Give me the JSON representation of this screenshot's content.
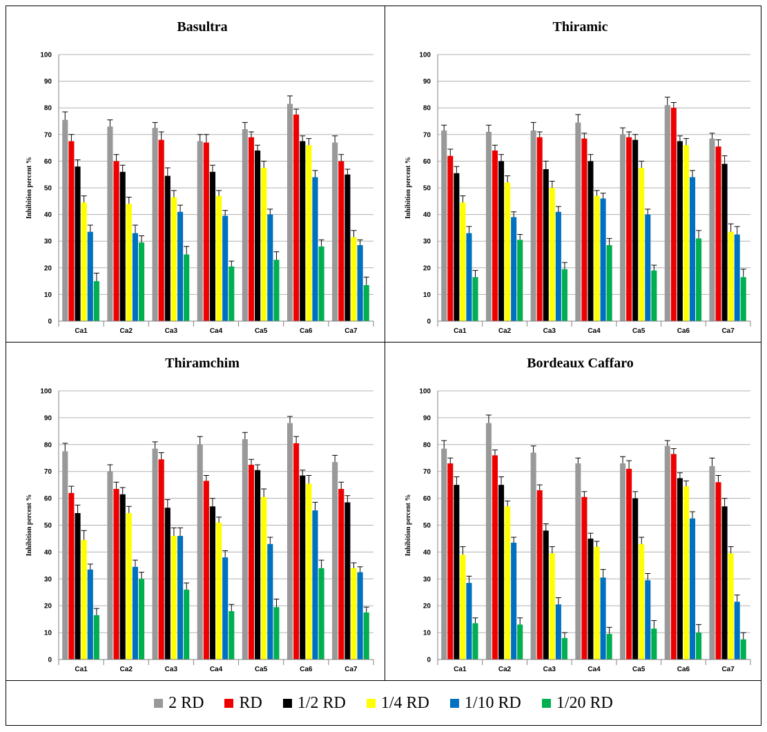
{
  "chart_data": [
    {
      "type": "bar",
      "title": "Basultra",
      "ylabel": "Inhibition percent %",
      "ylim": [
        0,
        100
      ],
      "yticks": [
        "0",
        "10",
        "20",
        "30",
        "40",
        "50",
        "60",
        "70",
        "80",
        "90",
        "100"
      ],
      "categories": [
        "Ca1",
        "Ca2",
        "Ca3",
        "Ca4",
        "Ca5",
        "Ca6",
        "Ca7"
      ],
      "series": [
        {
          "name": "2 RD",
          "values": [
            75.5,
            73,
            72.5,
            67.5,
            72,
            81.5,
            67
          ],
          "errors": [
            3,
            2.5,
            2,
            2.5,
            2.5,
            3,
            2.5
          ]
        },
        {
          "name": "RD",
          "values": [
            67.5,
            60,
            68,
            67,
            69,
            77.5,
            60
          ],
          "errors": [
            2.5,
            2.5,
            3,
            3,
            2,
            2,
            2.5
          ]
        },
        {
          "name": "1/2 RD",
          "values": [
            58,
            56,
            54.5,
            56,
            64,
            67.5,
            55
          ],
          "errors": [
            2.5,
            2.5,
            3,
            2.5,
            2,
            2,
            2
          ]
        },
        {
          "name": "1/4 RD",
          "values": [
            44.5,
            44,
            46.5,
            47,
            57.5,
            66,
            31.5
          ],
          "errors": [
            2.5,
            2.5,
            2.5,
            2,
            2.5,
            2.5,
            2.5
          ]
        },
        {
          "name": "1/10 RD",
          "values": [
            33.5,
            33,
            41,
            39.5,
            40,
            54,
            28.5
          ],
          "errors": [
            2.5,
            3,
            2.5,
            2,
            2,
            2.5,
            2
          ]
        },
        {
          "name": "1/20 RD",
          "values": [
            15,
            29.5,
            25,
            20.5,
            23,
            28,
            13.5
          ],
          "errors": [
            3,
            2.5,
            3,
            2,
            3,
            2.5,
            3
          ]
        }
      ]
    },
    {
      "type": "bar",
      "title": "Thiramic",
      "ylabel": "Inhibition percent %",
      "ylim": [
        0,
        100
      ],
      "yticks": [
        "0",
        "10",
        "20",
        "30",
        "40",
        "50",
        "60",
        "70",
        "80",
        "90",
        "100"
      ],
      "categories": [
        "Ca1",
        "Ca2",
        "Ca3",
        "Ca4",
        "Ca5",
        "Ca6",
        "Ca7"
      ],
      "series": [
        {
          "name": "2 RD",
          "values": [
            71.5,
            71,
            71.5,
            74.5,
            70,
            81,
            68.5
          ],
          "errors": [
            2,
            2.5,
            3,
            3,
            2.5,
            3,
            2
          ]
        },
        {
          "name": "RD",
          "values": [
            62,
            64,
            69,
            68.5,
            69,
            80,
            65.5
          ],
          "errors": [
            2.5,
            2,
            2,
            2,
            2,
            2,
            2.5
          ]
        },
        {
          "name": "1/2 RD",
          "values": [
            55.5,
            60,
            57,
            60,
            68,
            67.5,
            59
          ],
          "errors": [
            2.5,
            2.5,
            3,
            2.5,
            2,
            2,
            3
          ]
        },
        {
          "name": "1/4 RD",
          "values": [
            44.5,
            52,
            50,
            47,
            57.5,
            66,
            33.5
          ],
          "errors": [
            2.5,
            2.5,
            2.5,
            2,
            2.5,
            2.5,
            3
          ]
        },
        {
          "name": "1/10 RD",
          "values": [
            33,
            39,
            41,
            46,
            40,
            54,
            32.5
          ],
          "errors": [
            2.5,
            2,
            2,
            2,
            2,
            2.5,
            3
          ]
        },
        {
          "name": "1/20 RD",
          "values": [
            16.5,
            30.5,
            19.5,
            28.5,
            19,
            31,
            16.5
          ],
          "errors": [
            2.5,
            2,
            2.5,
            2.5,
            2,
            3,
            3
          ]
        }
      ]
    },
    {
      "type": "bar",
      "title": "Thiramchim",
      "ylabel": "Inhibition percent %",
      "ylim": [
        0,
        100
      ],
      "yticks": [
        "0",
        "10",
        "20",
        "30",
        "40",
        "50",
        "60",
        "70",
        "80",
        "90",
        "100"
      ],
      "categories": [
        "Ca1",
        "Ca2",
        "Ca3",
        "Ca4",
        "Ca5",
        "Ca6",
        "Ca7"
      ],
      "series": [
        {
          "name": "2 RD",
          "values": [
            77.5,
            70,
            78.5,
            80,
            82,
            88,
            73.5
          ],
          "errors": [
            3,
            2.5,
            2.5,
            3,
            2.5,
            2.5,
            2.5
          ]
        },
        {
          "name": "RD",
          "values": [
            62,
            63.5,
            74.5,
            66.5,
            72.5,
            80.5,
            63.5
          ],
          "errors": [
            2.5,
            2.5,
            2.5,
            2,
            2,
            2.5,
            2.5
          ]
        },
        {
          "name": "1/2 RD",
          "values": [
            54.5,
            61.5,
            56.5,
            57,
            70.5,
            68.5,
            58.5
          ],
          "errors": [
            3,
            2.5,
            3,
            3,
            2,
            2,
            2.5
          ]
        },
        {
          "name": "1/4 RD",
          "values": [
            44.5,
            54.5,
            46,
            51,
            60.5,
            65.5,
            34
          ],
          "errors": [
            3.5,
            2.5,
            3,
            2,
            3,
            3,
            2
          ]
        },
        {
          "name": "1/10 RD",
          "values": [
            33.5,
            34.5,
            46,
            38,
            43,
            55.5,
            32.5
          ],
          "errors": [
            2,
            2.5,
            3,
            2.5,
            2.5,
            3,
            2
          ]
        },
        {
          "name": "1/20 RD",
          "values": [
            16.5,
            30,
            26,
            18,
            19.5,
            34,
            17.5
          ],
          "errors": [
            2.5,
            2.5,
            2.5,
            2.5,
            3,
            3,
            2
          ]
        }
      ]
    },
    {
      "type": "bar",
      "title": "Bordeaux Caffaro",
      "ylabel": "Inhibition percent %",
      "ylim": [
        0,
        100
      ],
      "yticks": [
        "0",
        "10",
        "20",
        "30",
        "40",
        "50",
        "60",
        "70",
        "80",
        "90",
        "100"
      ],
      "categories": [
        "Ca1",
        "Ca2",
        "Ca3",
        "Ca4",
        "Ca5",
        "Ca6",
        "Ca7"
      ],
      "series": [
        {
          "name": "2 RD",
          "values": [
            78.5,
            88,
            77,
            73,
            73,
            79.5,
            72
          ],
          "errors": [
            3,
            3,
            2.5,
            2,
            2.5,
            2,
            3
          ]
        },
        {
          "name": "RD",
          "values": [
            73,
            76,
            63,
            60.5,
            71,
            76.5,
            66
          ],
          "errors": [
            2,
            2,
            2,
            2,
            3,
            2,
            2.5
          ]
        },
        {
          "name": "1/2 RD",
          "values": [
            65,
            65,
            48,
            45,
            60,
            67.5,
            57
          ],
          "errors": [
            3,
            3,
            2.5,
            2,
            2.5,
            2,
            3
          ]
        },
        {
          "name": "1/4 RD",
          "values": [
            39,
            57,
            39.5,
            42,
            43,
            64.5,
            39.5
          ],
          "errors": [
            3,
            2,
            2.5,
            2,
            2.5,
            2,
            2.5
          ]
        },
        {
          "name": "1/10 RD",
          "values": [
            28.5,
            43.5,
            20.5,
            30.5,
            29.5,
            52.5,
            21.5
          ],
          "errors": [
            2.5,
            2,
            2.5,
            3,
            2.5,
            2.5,
            2.5
          ]
        },
        {
          "name": "1/20 RD",
          "values": [
            13.5,
            13,
            8,
            9.5,
            11.5,
            10,
            7.5
          ],
          "errors": [
            2,
            2.5,
            2,
            2.5,
            3,
            3,
            2.5
          ]
        }
      ]
    }
  ],
  "legend": {
    "items": [
      {
        "label": "2 RD",
        "color": "#999999"
      },
      {
        "label": "RD",
        "color": "#ee0000"
      },
      {
        "label": "1/2 RD",
        "color": "#000000"
      },
      {
        "label": "1/4 RD",
        "color": "#ffff00"
      },
      {
        "label": "1/10 RD",
        "color": "#0070c0"
      },
      {
        "label": "1/20 RD",
        "color": "#00b050"
      }
    ]
  }
}
